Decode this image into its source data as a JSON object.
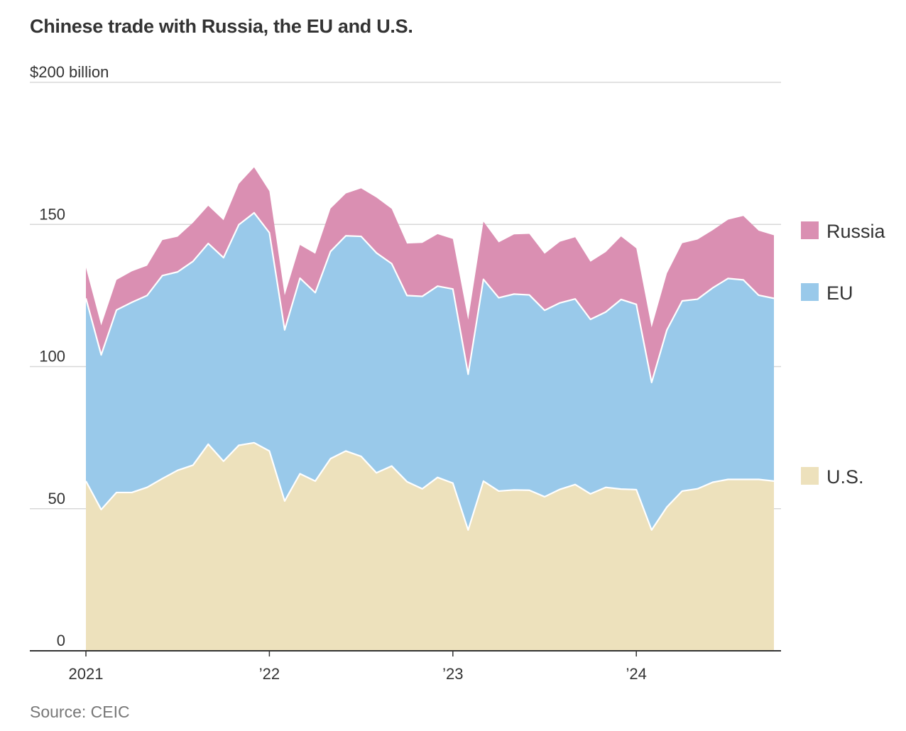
{
  "title": "Chinese trade with Russia, the EU and U.S.",
  "source": "Source: CEIC",
  "chart_data": {
    "type": "area",
    "stacked": true,
    "title": "Chinese trade with Russia, the EU and U.S.",
    "ylabel": "$200 billion",
    "ylim": [
      0,
      200
    ],
    "y_ticks": [
      {
        "value": 0,
        "label": "0"
      },
      {
        "value": 50,
        "label": "50"
      },
      {
        "value": 100,
        "label": "100"
      },
      {
        "value": 150,
        "label": "150"
      },
      {
        "value": 200,
        "label": "$200 billion"
      }
    ],
    "x_ticks": [
      {
        "value": 0,
        "label": "2021"
      },
      {
        "value": 12,
        "label": "’22"
      },
      {
        "value": 24,
        "label": "’23"
      },
      {
        "value": 36,
        "label": "’24"
      }
    ],
    "x": [
      "2021-01",
      "2021-02",
      "2021-03",
      "2021-04",
      "2021-05",
      "2021-06",
      "2021-07",
      "2021-08",
      "2021-09",
      "2021-10",
      "2021-11",
      "2021-12",
      "2022-01",
      "2022-02",
      "2022-03",
      "2022-04",
      "2022-05",
      "2022-06",
      "2022-07",
      "2022-08",
      "2022-09",
      "2022-10",
      "2022-11",
      "2022-12",
      "2023-01",
      "2023-02",
      "2023-03",
      "2023-04",
      "2023-05",
      "2023-06",
      "2023-07",
      "2023-08",
      "2023-09",
      "2023-10",
      "2023-11",
      "2023-12",
      "2024-01",
      "2024-02",
      "2024-03",
      "2024-04",
      "2024-05",
      "2024-06",
      "2024-07",
      "2024-08",
      "2024-09",
      "2024-10"
    ],
    "series": [
      {
        "name": "U.S.",
        "color": "#ede1bc",
        "values": [
          59.7,
          49.7,
          55.7,
          55.7,
          57.5,
          60.6,
          63.5,
          65.3,
          72.7,
          66.7,
          72.3,
          73.2,
          70.3,
          52.7,
          62.3,
          59.7,
          67.6,
          70.3,
          68.4,
          62.6,
          65.0,
          59.5,
          57.0,
          61.0,
          59.0,
          42.5,
          59.7,
          56.2,
          56.6,
          56.5,
          54.2,
          56.8,
          58.5,
          55.2,
          57.5,
          56.9,
          56.7,
          42.5,
          50.6,
          56.2,
          57.0,
          59.3,
          60.3,
          60.3,
          60.3,
          59.7
        ]
      },
      {
        "name": "EU",
        "color": "#99c9ea",
        "values": [
          64.3,
          54.4,
          64.2,
          66.9,
          67.5,
          71.4,
          69.8,
          71.7,
          70.6,
          71.6,
          77.6,
          80.9,
          76.8,
          60.2,
          68.8,
          66.3,
          72.9,
          75.7,
          77.4,
          77.4,
          71.2,
          65.5,
          67.7,
          67.3,
          68.3,
          54.8,
          71.0,
          68.0,
          68.9,
          68.7,
          65.6,
          65.6,
          65.3,
          61.4,
          61.7,
          66.7,
          65.2,
          51.9,
          62.3,
          66.9,
          66.7,
          68.4,
          70.7,
          70.2,
          64.8,
          64.3
        ]
      },
      {
        "name": "Russia",
        "color": "#da8fb2",
        "values": [
          10.8,
          10.4,
          10.6,
          10.9,
          10.5,
          12.5,
          12.4,
          13.6,
          13.3,
          13.2,
          14.4,
          16.0,
          14.6,
          12.2,
          11.7,
          13.7,
          15.1,
          14.9,
          16.9,
          19.5,
          19.3,
          18.3,
          18.8,
          18.3,
          17.6,
          19.2,
          20.3,
          19.5,
          21.0,
          21.5,
          19.9,
          21.5,
          21.7,
          20.3,
          21.1,
          22.2,
          19.7,
          19.4,
          19.9,
          20.3,
          21.0,
          20.3,
          20.7,
          22.5,
          22.7,
          22.2
        ]
      }
    ],
    "legend": [
      "Russia",
      "EU",
      "U.S."
    ],
    "legend_position": "right",
    "grid": true
  }
}
